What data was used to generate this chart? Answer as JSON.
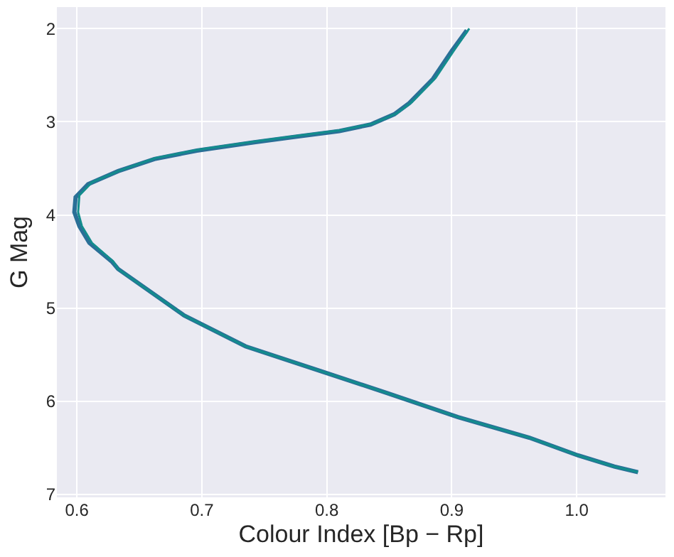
{
  "chart_data": {
    "type": "line",
    "xlabel": "Colour Index [Bp − Rp]",
    "ylabel": "G Mag",
    "xlim": [
      0.584,
      1.071
    ],
    "ylim": [
      7.03,
      1.77
    ],
    "xticks": [
      0.6,
      0.7,
      0.8,
      0.9,
      {
        "value": 1.0,
        "label": "1.0"
      }
    ],
    "yticks": [
      2,
      3,
      4,
      5,
      6,
      7
    ],
    "grid": true,
    "line_style": "solid",
    "marker": "none",
    "series": [
      {
        "color": "#2a6f97",
        "x": [
          0.912,
          0.9,
          0.885,
          0.866,
          0.854,
          0.835,
          0.81,
          0.776,
          0.742,
          0.696,
          0.662,
          0.633,
          0.609,
          0.599,
          0.598,
          0.602,
          0.61,
          0.628,
          0.633,
          0.686,
          0.735,
          0.796,
          0.848,
          0.905,
          0.962,
          1.001,
          1.03,
          1.049
        ],
        "values": [
          2.02,
          2.24,
          2.54,
          2.8,
          2.92,
          3.03,
          3.1,
          3.16,
          3.22,
          3.31,
          3.4,
          3.53,
          3.67,
          3.81,
          3.97,
          4.12,
          4.3,
          4.5,
          4.58,
          5.08,
          5.41,
          5.68,
          5.91,
          6.17,
          6.39,
          6.58,
          6.7,
          6.76
        ]
      },
      {
        "color": "#138d8d",
        "x": [
          0.914,
          0.902,
          0.887,
          0.868,
          0.856,
          0.837,
          0.811,
          0.777,
          0.743,
          0.697,
          0.663,
          0.635,
          0.612,
          0.602,
          0.601,
          0.604,
          0.612,
          0.629,
          0.633,
          0.686,
          0.735,
          0.796,
          0.848,
          0.905,
          0.962,
          1.001,
          1.03,
          1.049
        ],
        "values": [
          2.0,
          2.23,
          2.53,
          2.79,
          2.91,
          3.02,
          3.09,
          3.15,
          3.21,
          3.3,
          3.39,
          3.52,
          3.65,
          3.79,
          3.97,
          4.12,
          4.3,
          4.5,
          4.58,
          5.08,
          5.41,
          5.68,
          5.91,
          6.17,
          6.39,
          6.58,
          6.7,
          6.76
        ]
      }
    ]
  }
}
